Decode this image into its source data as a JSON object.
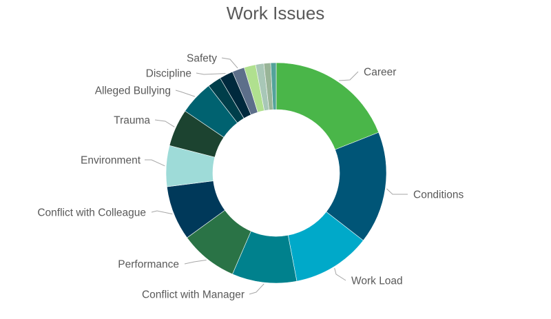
{
  "chart_data": {
    "type": "pie",
    "variant": "doughnut",
    "title": "Work Issues",
    "slices": [
      {
        "label": "Career",
        "value": 19.0,
        "color": "#4ab649"
      },
      {
        "label": "Conditions",
        "value": 16.5,
        "color": "#005577"
      },
      {
        "label": "Work Load",
        "value": 11.5,
        "color": "#00a9c9"
      },
      {
        "label": "Conflict with Manager",
        "value": 9.5,
        "color": "#00818d"
      },
      {
        "label": "Performance",
        "value": 8.5,
        "color": "#2a7346"
      },
      {
        "label": "Conflict with Colleague",
        "value": 8.0,
        "color": "#00395a"
      },
      {
        "label": "Environment",
        "value": 6.0,
        "color": "#9edbd8"
      },
      {
        "label": "Trauma",
        "value": 5.5,
        "color": "#1c4330"
      },
      {
        "label": "Alleged Bullying",
        "value": 5.0,
        "color": "#006270"
      },
      {
        "label": "",
        "value": 2.0,
        "color": "#003e4a"
      },
      {
        "label": "Discipline",
        "value": 2.0,
        "color": "#00293d"
      },
      {
        "label": "Safety",
        "value": 1.8,
        "color": "#5d6f8a"
      },
      {
        "label": "",
        "value": 1.7,
        "color": "#b0e08f"
      },
      {
        "label": "",
        "value": 1.2,
        "color": "#a8c7b7"
      },
      {
        "label": "",
        "value": 1.0,
        "color": "#99b598"
      },
      {
        "label": "",
        "value": 0.8,
        "color": "#53a39a"
      }
    ]
  }
}
